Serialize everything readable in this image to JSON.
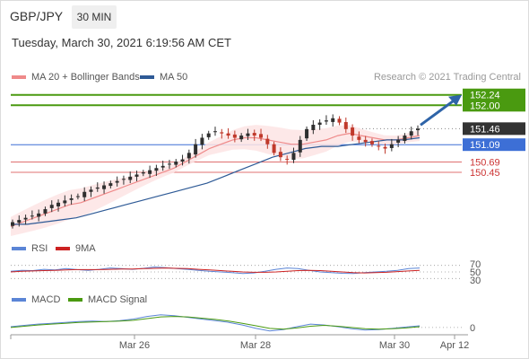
{
  "header": {
    "symbol": "GBP/JPY",
    "timeframe": "30 MIN",
    "datetime": "Tuesday, March 30, 2021 6:19:56 AM CET",
    "copyright": "Research © 2021 Trading Central"
  },
  "legends": {
    "ma20_label": "MA 20 + Bollinger Bands",
    "ma50_label": "MA 50",
    "rsi_label": "RSI",
    "rsi_ma_label": "9MA",
    "macd_label": "MACD",
    "macd_signal_label": "MACD Signal"
  },
  "colors": {
    "ma20": "#ef8a8a",
    "ma50": "#2e5a96",
    "bollinger_fill": "#fde4e4",
    "candle_up": "#2f2f2f",
    "candle_down": "#c0392b",
    "resistance": "#4a9a10",
    "support": "#e07070",
    "pivot": "#3d6fd6",
    "current_price_bg": "#333333",
    "rsi": "#5b85d6",
    "rsi_ma": "#cc2222",
    "macd": "#5b85d6",
    "macd_signal": "#4a9a10",
    "arrow": "#2e64a8"
  },
  "chart_data": [
    {
      "type": "line",
      "subtype": "candlestick",
      "x_ticks": [
        "Mar 26",
        "Mar 28",
        "Mar 30",
        "Apr 12"
      ],
      "price_series": [
        149.3,
        149.35,
        149.4,
        149.45,
        149.5,
        149.6,
        149.7,
        149.75,
        149.8,
        149.85,
        149.9,
        150.0,
        150.05,
        150.1,
        150.15,
        150.2,
        150.25,
        150.3,
        150.35,
        150.4,
        150.45,
        150.5,
        150.55,
        150.6,
        150.65,
        150.7,
        150.75,
        150.9,
        151.1,
        151.25,
        151.35,
        151.4,
        151.35,
        151.3,
        151.25,
        151.3,
        151.35,
        151.3,
        151.25,
        151.1,
        150.9,
        150.8,
        150.75,
        150.9,
        151.2,
        151.45,
        151.55,
        151.6,
        151.65,
        151.7,
        151.6,
        151.45,
        151.3,
        151.2,
        151.15,
        151.1,
        151.05,
        151.0,
        151.1,
        151.2,
        151.3,
        151.4,
        151.46
      ],
      "ma20_series": [
        149.2,
        149.3,
        149.4,
        149.5,
        149.6,
        149.7,
        149.75,
        149.85,
        149.95,
        150.05,
        150.15,
        150.25,
        150.35,
        150.45,
        150.55,
        150.7,
        150.85,
        151.0,
        151.1,
        151.2,
        151.25,
        151.25,
        151.2,
        151.15,
        151.1,
        151.1,
        151.15,
        151.2,
        151.3,
        151.35,
        151.3,
        151.25,
        151.2,
        151.2,
        151.25,
        151.3
      ],
      "ma50_series": [
        149.25,
        149.25,
        149.3,
        149.35,
        149.4,
        149.5,
        149.6,
        149.7,
        149.8,
        149.9,
        150.0,
        150.1,
        150.2,
        150.35,
        150.5,
        150.65,
        150.8,
        150.9,
        151.0,
        151.05,
        151.05,
        151.1,
        151.15,
        151.2,
        151.2,
        151.25
      ],
      "levels": [
        {
          "label": "152.24",
          "value": 152.24,
          "kind": "resistance"
        },
        {
          "label": "152.00",
          "value": 152.0,
          "kind": "resistance"
        },
        {
          "label": "151.46",
          "value": 151.46,
          "kind": "current"
        },
        {
          "label": "151.09",
          "value": 151.09,
          "kind": "pivot"
        },
        {
          "label": "150.69",
          "value": 150.69,
          "kind": "support"
        },
        {
          "label": "150.45",
          "value": 150.45,
          "kind": "support"
        }
      ],
      "target_arrow": {
        "from": 151.46,
        "to": 152.24
      },
      "ylim": [
        149.0,
        152.4
      ]
    },
    {
      "type": "line",
      "name": "RSI",
      "levels": [
        70,
        50,
        30
      ],
      "series": [
        {
          "name": "RSI",
          "values": [
            52,
            55,
            54,
            58,
            56,
            60,
            57,
            55,
            58,
            62,
            60,
            58,
            61,
            65,
            63,
            60,
            58,
            55,
            52,
            50,
            48,
            45,
            47,
            52,
            58,
            62,
            60,
            55,
            50,
            48,
            46,
            45,
            48,
            50,
            52,
            55,
            60,
            62
          ]
        },
        {
          "name": "9MA",
          "values": [
            50,
            52,
            53,
            54,
            55,
            56,
            57,
            57,
            57,
            58,
            59,
            59,
            60,
            61,
            62,
            61,
            60,
            58,
            56,
            54,
            52,
            50,
            49,
            49,
            50,
            52,
            54,
            55,
            54,
            52,
            50,
            48,
            47,
            48,
            49,
            51,
            53,
            55
          ]
        }
      ],
      "ylim": [
        20,
        80
      ]
    },
    {
      "type": "line",
      "name": "MACD",
      "levels": [
        0
      ],
      "series": [
        {
          "name": "MACD",
          "values": [
            0.02,
            0.05,
            0.08,
            0.1,
            0.12,
            0.14,
            0.15,
            0.14,
            0.16,
            0.2,
            0.26,
            0.3,
            0.28,
            0.24,
            0.2,
            0.16,
            0.12,
            0.06,
            -0.02,
            -0.08,
            -0.05,
            0.02,
            0.08,
            0.06,
            0.02,
            -0.03,
            -0.06,
            -0.05,
            -0.02,
            0.01,
            0.04
          ]
        },
        {
          "name": "MACD Signal",
          "values": [
            0.0,
            0.03,
            0.06,
            0.08,
            0.1,
            0.12,
            0.13,
            0.14,
            0.15,
            0.17,
            0.21,
            0.25,
            0.26,
            0.25,
            0.22,
            0.19,
            0.15,
            0.1,
            0.04,
            -0.02,
            -0.04,
            -0.01,
            0.03,
            0.05,
            0.03,
            0.0,
            -0.03,
            -0.04,
            -0.03,
            -0.01,
            0.02
          ]
        }
      ],
      "ylim": [
        -0.15,
        0.4
      ]
    }
  ],
  "indicator_axis": {
    "rsi_70": "70",
    "rsi_50": "50",
    "rsi_30": "30",
    "macd_zero": "0"
  }
}
